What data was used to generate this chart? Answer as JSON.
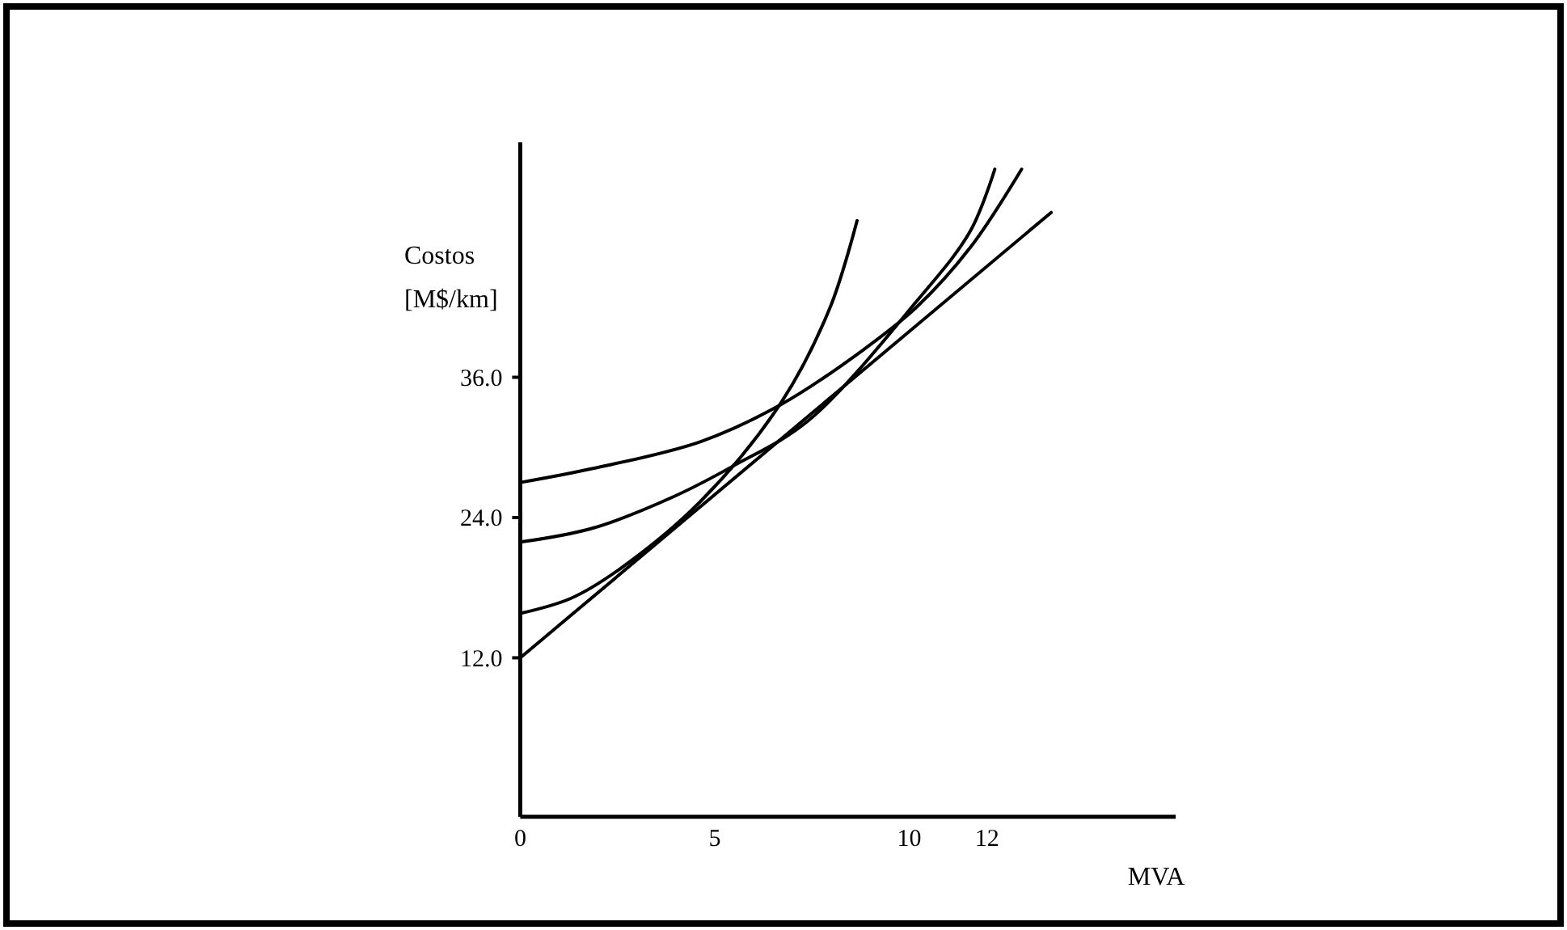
{
  "chart_data": {
    "type": "line",
    "xlabel": "MVA",
    "ylabel": "Costos\n[M$/km]",
    "xlim": [
      0,
      16.85
    ],
    "ylim": [
      -1.6,
      56.1
    ],
    "xticks": [
      0,
      5,
      10,
      12
    ],
    "yticks": [
      {
        "value": 12,
        "label": "12.0"
      },
      {
        "value": 24,
        "label": "24.0"
      },
      {
        "value": 36,
        "label": "36.0"
      }
    ],
    "grid": false,
    "marker": "none",
    "line_style": "solid",
    "series": [
      {
        "color": "#000000",
        "x": [
          0,
          13.65
        ],
        "values": [
          12,
          50.1
        ]
      },
      {
        "color": "#000000",
        "x": [
          0,
          1.31,
          2.56,
          4.64,
          6.72,
          7.97,
          8.66
        ],
        "values": [
          15.8,
          17.1,
          19.6,
          25.4,
          33.9,
          42.0,
          49.4
        ]
      },
      {
        "color": "#000000",
        "x": [
          0,
          1.87,
          3.95,
          5.47,
          7.41,
          10.19,
          11.57,
          12.2
        ],
        "values": [
          21.9,
          23.1,
          25.8,
          28.4,
          32.3,
          42.5,
          48.5,
          53.8
        ]
      },
      {
        "color": "#000000",
        "x": [
          0,
          1.87,
          4.64,
          6.72,
          8.8,
          10.19,
          11.57,
          12.89
        ],
        "values": [
          27.0,
          28.2,
          30.5,
          33.7,
          38.3,
          42.0,
          47.1,
          53.8
        ]
      }
    ]
  }
}
